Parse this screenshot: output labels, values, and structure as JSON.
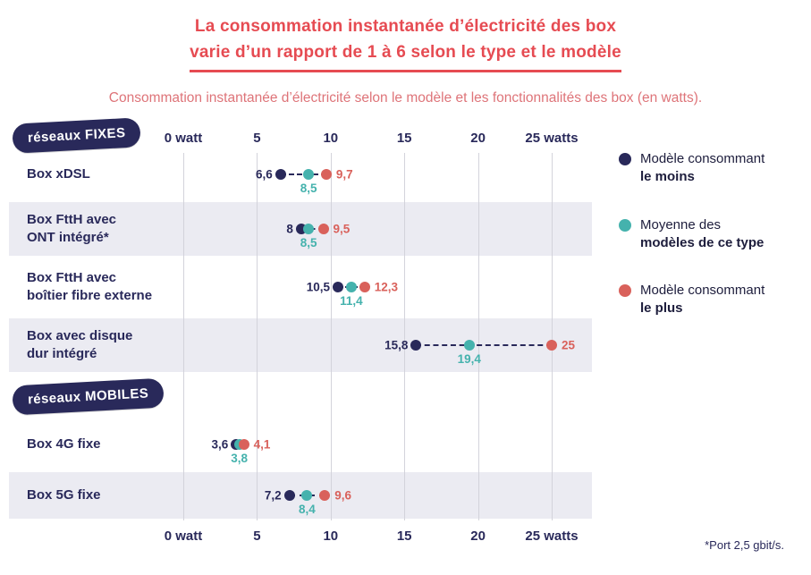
{
  "chart_data": {
    "type": "scatter",
    "title_line1": "La consommation instantanée d’électricité des box",
    "title_line2": "varie d’un rapport de 1 à 6 selon le type et le modèle",
    "subtitle": "Consommation instantanée d’électricité selon le modèle et les fonctionnalités des box (en watts).",
    "unit": "watts",
    "axis": {
      "min": 0,
      "max": 25,
      "ticks": [
        {
          "v": 0,
          "label": "0 watt"
        },
        {
          "v": 5,
          "label": "5"
        },
        {
          "v": 10,
          "label": "10"
        },
        {
          "v": 15,
          "label": "15"
        },
        {
          "v": 20,
          "label": "20"
        },
        {
          "v": 25,
          "label": "25 watts"
        }
      ]
    },
    "series_meta": {
      "min": {
        "name": "Modèle consommant le moins",
        "color": "#29295a"
      },
      "avg": {
        "name": "Moyenne des modèles de ce type",
        "color": "#45b2ad"
      },
      "max": {
        "name": "Modèle consommant le plus",
        "color": "#d9615b"
      }
    },
    "groups": [
      {
        "badge": "réseaux FIXES",
        "rows": [
          {
            "label_lines": [
              "Box xDSL"
            ],
            "min": 6.6,
            "avg": 8.5,
            "max": 9.7,
            "min_label": "6,6",
            "avg_label": "8,5",
            "max_label": "9,7",
            "shaded": false
          },
          {
            "label_lines": [
              "Box FttH avec",
              "ONT intégré*"
            ],
            "min": 8,
            "avg": 8.5,
            "max": 9.5,
            "min_label": "8",
            "avg_label": "8,5",
            "max_label": "9,5",
            "shaded": true
          },
          {
            "label_lines": [
              "Box FttH avec",
              "boîtier fibre externe"
            ],
            "min": 10.5,
            "avg": 11.4,
            "max": 12.3,
            "min_label": "10,5",
            "avg_label": "11,4",
            "max_label": "12,3",
            "shaded": false
          },
          {
            "label_lines": [
              "Box avec disque",
              "dur intégré"
            ],
            "min": 15.8,
            "avg": 19.4,
            "max": 25,
            "min_label": "15,8",
            "avg_label": "19,4",
            "max_label": "25",
            "shaded": true
          }
        ]
      },
      {
        "badge": "réseaux MOBILES",
        "rows": [
          {
            "label_lines": [
              "Box 4G fixe"
            ],
            "min": 3.6,
            "avg": 3.8,
            "max": 4.1,
            "min_label": "3,6",
            "avg_label": "3,8",
            "max_label": "4,1",
            "shaded": false
          },
          {
            "label_lines": [
              "Box 5G fixe"
            ],
            "min": 7.2,
            "avg": 8.4,
            "max": 9.6,
            "min_label": "7,2",
            "avg_label": "8,4",
            "max_label": "9,6",
            "shaded": true
          }
        ]
      }
    ],
    "legend": [
      {
        "color": "#29295a",
        "line1": "Modèle consommant",
        "line2": "le moins"
      },
      {
        "color": "#45b2ad",
        "line1": "Moyenne des",
        "line2": "modèles de ce type"
      },
      {
        "color": "#d9615b",
        "line1": "Modèle consommant",
        "line2": "le plus"
      }
    ],
    "footnote": "*Port 2,5 gbit/s.",
    "colors": {
      "title": "#e64b52",
      "subtitle": "#de7479",
      "navy": "#29295a",
      "teal": "#45b2ad",
      "coral": "#d9615b",
      "row_shade": "#ebebf2",
      "grid": "#d3d3db"
    }
  }
}
